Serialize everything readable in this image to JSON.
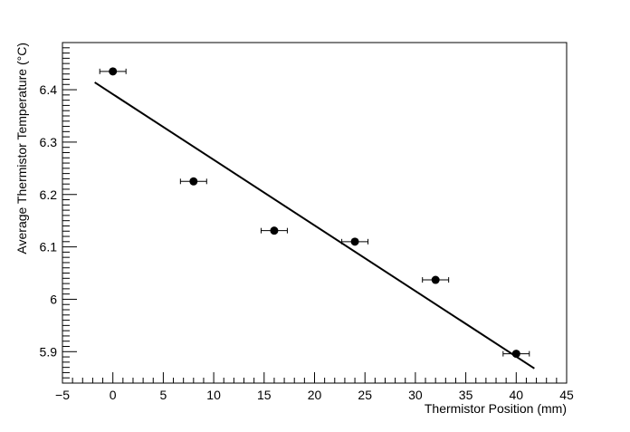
{
  "chart_data": {
    "type": "scatter",
    "title": "",
    "xlabel": "Thermistor Position (mm)",
    "ylabel": "Average Thermistor Temperature (°C)",
    "xlim": [
      -5,
      45
    ],
    "ylim": [
      5.84,
      6.49
    ],
    "grid": false,
    "legend": "none",
    "x_ticks": [
      -5,
      0,
      5,
      10,
      15,
      20,
      25,
      30,
      35,
      40,
      45
    ],
    "x_tick_labels": [
      "−5",
      "0",
      "5",
      "10",
      "15",
      "20",
      "25",
      "30",
      "35",
      "40",
      "45"
    ],
    "y_ticks": [
      5.9,
      6.0,
      6.1,
      6.2,
      6.3,
      6.4
    ],
    "y_tick_labels": [
      "5.9",
      "6",
      "6.1",
      "6.2",
      "6.3",
      "6.4"
    ],
    "series": [
      {
        "type": "scatter",
        "x": [
          0,
          8,
          16,
          24,
          32,
          40
        ],
        "y": [
          6.435,
          6.225,
          6.131,
          6.11,
          6.037,
          5.896
        ],
        "x_err": [
          1.3,
          1.3,
          1.3,
          1.3,
          1.3,
          1.3
        ],
        "color": "#000000"
      },
      {
        "type": "line",
        "x": [
          -1.8,
          41.8
        ],
        "y": [
          6.414,
          5.868
        ],
        "color": "#000000"
      }
    ]
  }
}
